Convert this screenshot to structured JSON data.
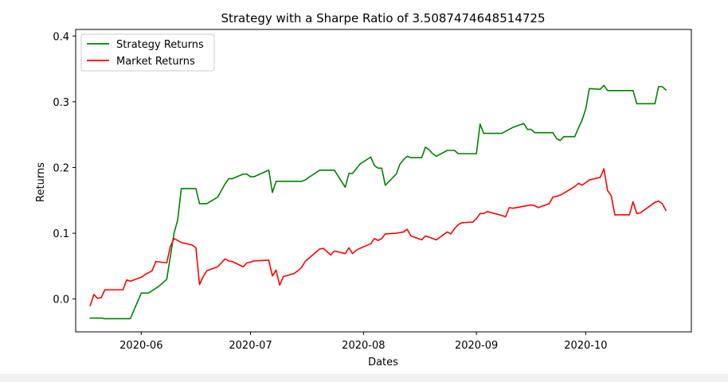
{
  "chart_data": {
    "type": "line",
    "title": "Strategy with a Sharpe Ratio of 3.5087474648514725",
    "xlabel": "Dates",
    "ylabel": "Returns",
    "x_range": [
      "2020-05-14",
      "2020-10-30"
    ],
    "ylim": [
      -0.05,
      0.41
    ],
    "x_ticks": [
      {
        "date": "2020-06-01",
        "label": "2020-06"
      },
      {
        "date": "2020-07-01",
        "label": "2020-07"
      },
      {
        "date": "2020-08-01",
        "label": "2020-08"
      },
      {
        "date": "2020-09-01",
        "label": "2020-09"
      },
      {
        "date": "2020-10-01",
        "label": "2020-10"
      }
    ],
    "y_ticks": [
      {
        "value": 0.0,
        "label": "0.0"
      },
      {
        "value": 0.1,
        "label": "0.1"
      },
      {
        "value": 0.2,
        "label": "0.2"
      },
      {
        "value": 0.3,
        "label": "0.3"
      },
      {
        "value": 0.4,
        "label": "0.4"
      }
    ],
    "grid": false,
    "legend_position": "upper-left",
    "series": [
      {
        "name": "Strategy Returns",
        "color": "#008000",
        "points": [
          [
            "2020-05-18",
            -0.029
          ],
          [
            "2020-05-20",
            -0.029
          ],
          [
            "2020-05-21",
            -0.029
          ],
          [
            "2020-05-22",
            -0.03
          ],
          [
            "2020-05-25",
            -0.03
          ],
          [
            "2020-05-26",
            -0.03
          ],
          [
            "2020-05-27",
            -0.03
          ],
          [
            "2020-05-28",
            -0.03
          ],
          [
            "2020-05-29",
            -0.03
          ],
          [
            "2020-06-01",
            0.009
          ],
          [
            "2020-06-03",
            0.009
          ],
          [
            "2020-06-06",
            0.02
          ],
          [
            "2020-06-08",
            0.03
          ],
          [
            "2020-06-09",
            0.065
          ],
          [
            "2020-06-10",
            0.1
          ],
          [
            "2020-06-11",
            0.12
          ],
          [
            "2020-06-12",
            0.168
          ],
          [
            "2020-06-15",
            0.168
          ],
          [
            "2020-06-16",
            0.168
          ],
          [
            "2020-06-17",
            0.145
          ],
          [
            "2020-06-18",
            0.145
          ],
          [
            "2020-06-19",
            0.145
          ],
          [
            "2020-06-22",
            0.155
          ],
          [
            "2020-06-23",
            0.165
          ],
          [
            "2020-06-24",
            0.175
          ],
          [
            "2020-06-25",
            0.183
          ],
          [
            "2020-06-26",
            0.183
          ],
          [
            "2020-06-29",
            0.19
          ],
          [
            "2020-06-30",
            0.19
          ],
          [
            "2020-07-01",
            0.186
          ],
          [
            "2020-07-02",
            0.186
          ],
          [
            "2020-07-06",
            0.196
          ],
          [
            "2020-07-07",
            0.162
          ],
          [
            "2020-07-08",
            0.179
          ],
          [
            "2020-07-09",
            0.179
          ],
          [
            "2020-07-10",
            0.179
          ],
          [
            "2020-07-13",
            0.179
          ],
          [
            "2020-07-14",
            0.179
          ],
          [
            "2020-07-15",
            0.179
          ],
          [
            "2020-07-16",
            0.181
          ],
          [
            "2020-07-17",
            0.185
          ],
          [
            "2020-07-20",
            0.196
          ],
          [
            "2020-07-21",
            0.196
          ],
          [
            "2020-07-22",
            0.196
          ],
          [
            "2020-07-23",
            0.196
          ],
          [
            "2020-07-24",
            0.196
          ],
          [
            "2020-07-27",
            0.17
          ],
          [
            "2020-07-28",
            0.191
          ],
          [
            "2020-07-29",
            0.191
          ],
          [
            "2020-07-30",
            0.198
          ],
          [
            "2020-07-31",
            0.205
          ],
          [
            "2020-08-03",
            0.216
          ],
          [
            "2020-08-04",
            0.203
          ],
          [
            "2020-08-05",
            0.199
          ],
          [
            "2020-08-06",
            0.199
          ],
          [
            "2020-08-07",
            0.173
          ],
          [
            "2020-08-10",
            0.19
          ],
          [
            "2020-08-11",
            0.205
          ],
          [
            "2020-08-12",
            0.212
          ],
          [
            "2020-08-13",
            0.217
          ],
          [
            "2020-08-14",
            0.215
          ],
          [
            "2020-08-17",
            0.215
          ],
          [
            "2020-08-18",
            0.231
          ],
          [
            "2020-08-19",
            0.227
          ],
          [
            "2020-08-20",
            0.221
          ],
          [
            "2020-08-21",
            0.217
          ],
          [
            "2020-08-24",
            0.226
          ],
          [
            "2020-08-25",
            0.226
          ],
          [
            "2020-08-26",
            0.226
          ],
          [
            "2020-08-27",
            0.221
          ],
          [
            "2020-08-28",
            0.221
          ],
          [
            "2020-08-31",
            0.221
          ],
          [
            "2020-09-01",
            0.221
          ],
          [
            "2020-09-02",
            0.266
          ],
          [
            "2020-09-03",
            0.252
          ],
          [
            "2020-09-04",
            0.252
          ],
          [
            "2020-09-08",
            0.252
          ],
          [
            "2020-09-09",
            0.255
          ],
          [
            "2020-09-10",
            0.258
          ],
          [
            "2020-09-11",
            0.261
          ],
          [
            "2020-09-14",
            0.267
          ],
          [
            "2020-09-15",
            0.258
          ],
          [
            "2020-09-16",
            0.258
          ],
          [
            "2020-09-17",
            0.253
          ],
          [
            "2020-09-18",
            0.253
          ],
          [
            "2020-09-21",
            0.253
          ],
          [
            "2020-09-22",
            0.253
          ],
          [
            "2020-09-23",
            0.244
          ],
          [
            "2020-09-24",
            0.241
          ],
          [
            "2020-09-25",
            0.247
          ],
          [
            "2020-09-28",
            0.247
          ],
          [
            "2020-09-29",
            0.26
          ],
          [
            "2020-09-30",
            0.272
          ],
          [
            "2020-10-01",
            0.289
          ],
          [
            "2020-10-02",
            0.32
          ],
          [
            "2020-10-05",
            0.319
          ],
          [
            "2020-10-06",
            0.325
          ],
          [
            "2020-10-07",
            0.317
          ],
          [
            "2020-10-08",
            0.317
          ],
          [
            "2020-10-09",
            0.317
          ],
          [
            "2020-10-12",
            0.317
          ],
          [
            "2020-10-13",
            0.317
          ],
          [
            "2020-10-14",
            0.317
          ],
          [
            "2020-10-15",
            0.297
          ],
          [
            "2020-10-16",
            0.297
          ],
          [
            "2020-10-19",
            0.297
          ],
          [
            "2020-10-20",
            0.297
          ],
          [
            "2020-10-21",
            0.323
          ],
          [
            "2020-10-22",
            0.323
          ],
          [
            "2020-10-23",
            0.318
          ]
        ]
      },
      {
        "name": "Market Returns",
        "color": "#ff0000",
        "points": [
          [
            "2020-05-18",
            -0.01
          ],
          [
            "2020-05-19",
            0.007
          ],
          [
            "2020-05-20",
            0.001
          ],
          [
            "2020-05-21",
            0.002
          ],
          [
            "2020-05-22",
            0.014
          ],
          [
            "2020-05-26",
            0.014
          ],
          [
            "2020-05-27",
            0.014
          ],
          [
            "2020-05-28",
            0.029
          ],
          [
            "2020-05-29",
            0.027
          ],
          [
            "2020-06-01",
            0.033
          ],
          [
            "2020-06-02",
            0.037
          ],
          [
            "2020-06-03",
            0.04
          ],
          [
            "2020-06-04",
            0.043
          ],
          [
            "2020-06-05",
            0.057
          ],
          [
            "2020-06-08",
            0.055
          ],
          [
            "2020-06-09",
            0.08
          ],
          [
            "2020-06-10",
            0.092
          ],
          [
            "2020-06-11",
            0.089
          ],
          [
            "2020-06-12",
            0.086
          ],
          [
            "2020-06-15",
            0.082
          ],
          [
            "2020-06-16",
            0.078
          ],
          [
            "2020-06-17",
            0.022
          ],
          [
            "2020-06-18",
            0.034
          ],
          [
            "2020-06-19",
            0.043
          ],
          [
            "2020-06-22",
            0.049
          ],
          [
            "2020-06-23",
            0.055
          ],
          [
            "2020-06-24",
            0.061
          ],
          [
            "2020-06-25",
            0.058
          ],
          [
            "2020-06-26",
            0.057
          ],
          [
            "2020-06-29",
            0.049
          ],
          [
            "2020-06-30",
            0.055
          ],
          [
            "2020-07-01",
            0.056
          ],
          [
            "2020-07-02",
            0.058
          ],
          [
            "2020-07-06",
            0.059
          ],
          [
            "2020-07-07",
            0.035
          ],
          [
            "2020-07-08",
            0.044
          ],
          [
            "2020-07-09",
            0.021
          ],
          [
            "2020-07-10",
            0.034
          ],
          [
            "2020-07-13",
            0.039
          ],
          [
            "2020-07-14",
            0.043
          ],
          [
            "2020-07-15",
            0.048
          ],
          [
            "2020-07-16",
            0.057
          ],
          [
            "2020-07-17",
            0.062
          ],
          [
            "2020-07-20",
            0.076
          ],
          [
            "2020-07-21",
            0.077
          ],
          [
            "2020-07-22",
            0.072
          ],
          [
            "2020-07-23",
            0.067
          ],
          [
            "2020-07-24",
            0.073
          ],
          [
            "2020-07-27",
            0.069
          ],
          [
            "2020-07-28",
            0.078
          ],
          [
            "2020-07-29",
            0.069
          ],
          [
            "2020-07-30",
            0.074
          ],
          [
            "2020-07-31",
            0.077
          ],
          [
            "2020-08-03",
            0.084
          ],
          [
            "2020-08-04",
            0.092
          ],
          [
            "2020-08-05",
            0.089
          ],
          [
            "2020-08-06",
            0.092
          ],
          [
            "2020-08-07",
            0.099
          ],
          [
            "2020-08-10",
            0.1
          ],
          [
            "2020-08-11",
            0.101
          ],
          [
            "2020-08-12",
            0.102
          ],
          [
            "2020-08-13",
            0.106
          ],
          [
            "2020-08-14",
            0.096
          ],
          [
            "2020-08-17",
            0.09
          ],
          [
            "2020-08-18",
            0.096
          ],
          [
            "2020-08-19",
            0.094
          ],
          [
            "2020-08-20",
            0.092
          ],
          [
            "2020-08-21",
            0.09
          ],
          [
            "2020-08-24",
            0.102
          ],
          [
            "2020-08-25",
            0.099
          ],
          [
            "2020-08-26",
            0.107
          ],
          [
            "2020-08-27",
            0.113
          ],
          [
            "2020-08-28",
            0.116
          ],
          [
            "2020-08-31",
            0.117
          ],
          [
            "2020-09-01",
            0.122
          ],
          [
            "2020-09-02",
            0.13
          ],
          [
            "2020-09-03",
            0.13
          ],
          [
            "2020-09-04",
            0.133
          ],
          [
            "2020-09-08",
            0.127
          ],
          [
            "2020-09-09",
            0.125
          ],
          [
            "2020-09-10",
            0.139
          ],
          [
            "2020-09-11",
            0.138
          ],
          [
            "2020-09-14",
            0.141
          ],
          [
            "2020-09-15",
            0.142
          ],
          [
            "2020-09-16",
            0.143
          ],
          [
            "2020-09-17",
            0.142
          ],
          [
            "2020-09-18",
            0.139
          ],
          [
            "2020-09-21",
            0.145
          ],
          [
            "2020-09-22",
            0.155
          ],
          [
            "2020-09-23",
            0.156
          ],
          [
            "2020-09-24",
            0.158
          ],
          [
            "2020-09-25",
            0.161
          ],
          [
            "2020-09-28",
            0.171
          ],
          [
            "2020-09-29",
            0.176
          ],
          [
            "2020-09-30",
            0.173
          ],
          [
            "2020-10-01",
            0.177
          ],
          [
            "2020-10-02",
            0.181
          ],
          [
            "2020-10-05",
            0.185
          ],
          [
            "2020-10-06",
            0.198
          ],
          [
            "2020-10-07",
            0.165
          ],
          [
            "2020-10-08",
            0.157
          ],
          [
            "2020-10-09",
            0.128
          ],
          [
            "2020-10-12",
            0.128
          ],
          [
            "2020-10-13",
            0.128
          ],
          [
            "2020-10-14",
            0.148
          ],
          [
            "2020-10-15",
            0.13
          ],
          [
            "2020-10-16",
            0.131
          ],
          [
            "2020-10-19",
            0.143
          ],
          [
            "2020-10-20",
            0.147
          ],
          [
            "2020-10-21",
            0.149
          ],
          [
            "2020-10-22",
            0.145
          ],
          [
            "2020-10-23",
            0.135
          ]
        ]
      }
    ]
  }
}
